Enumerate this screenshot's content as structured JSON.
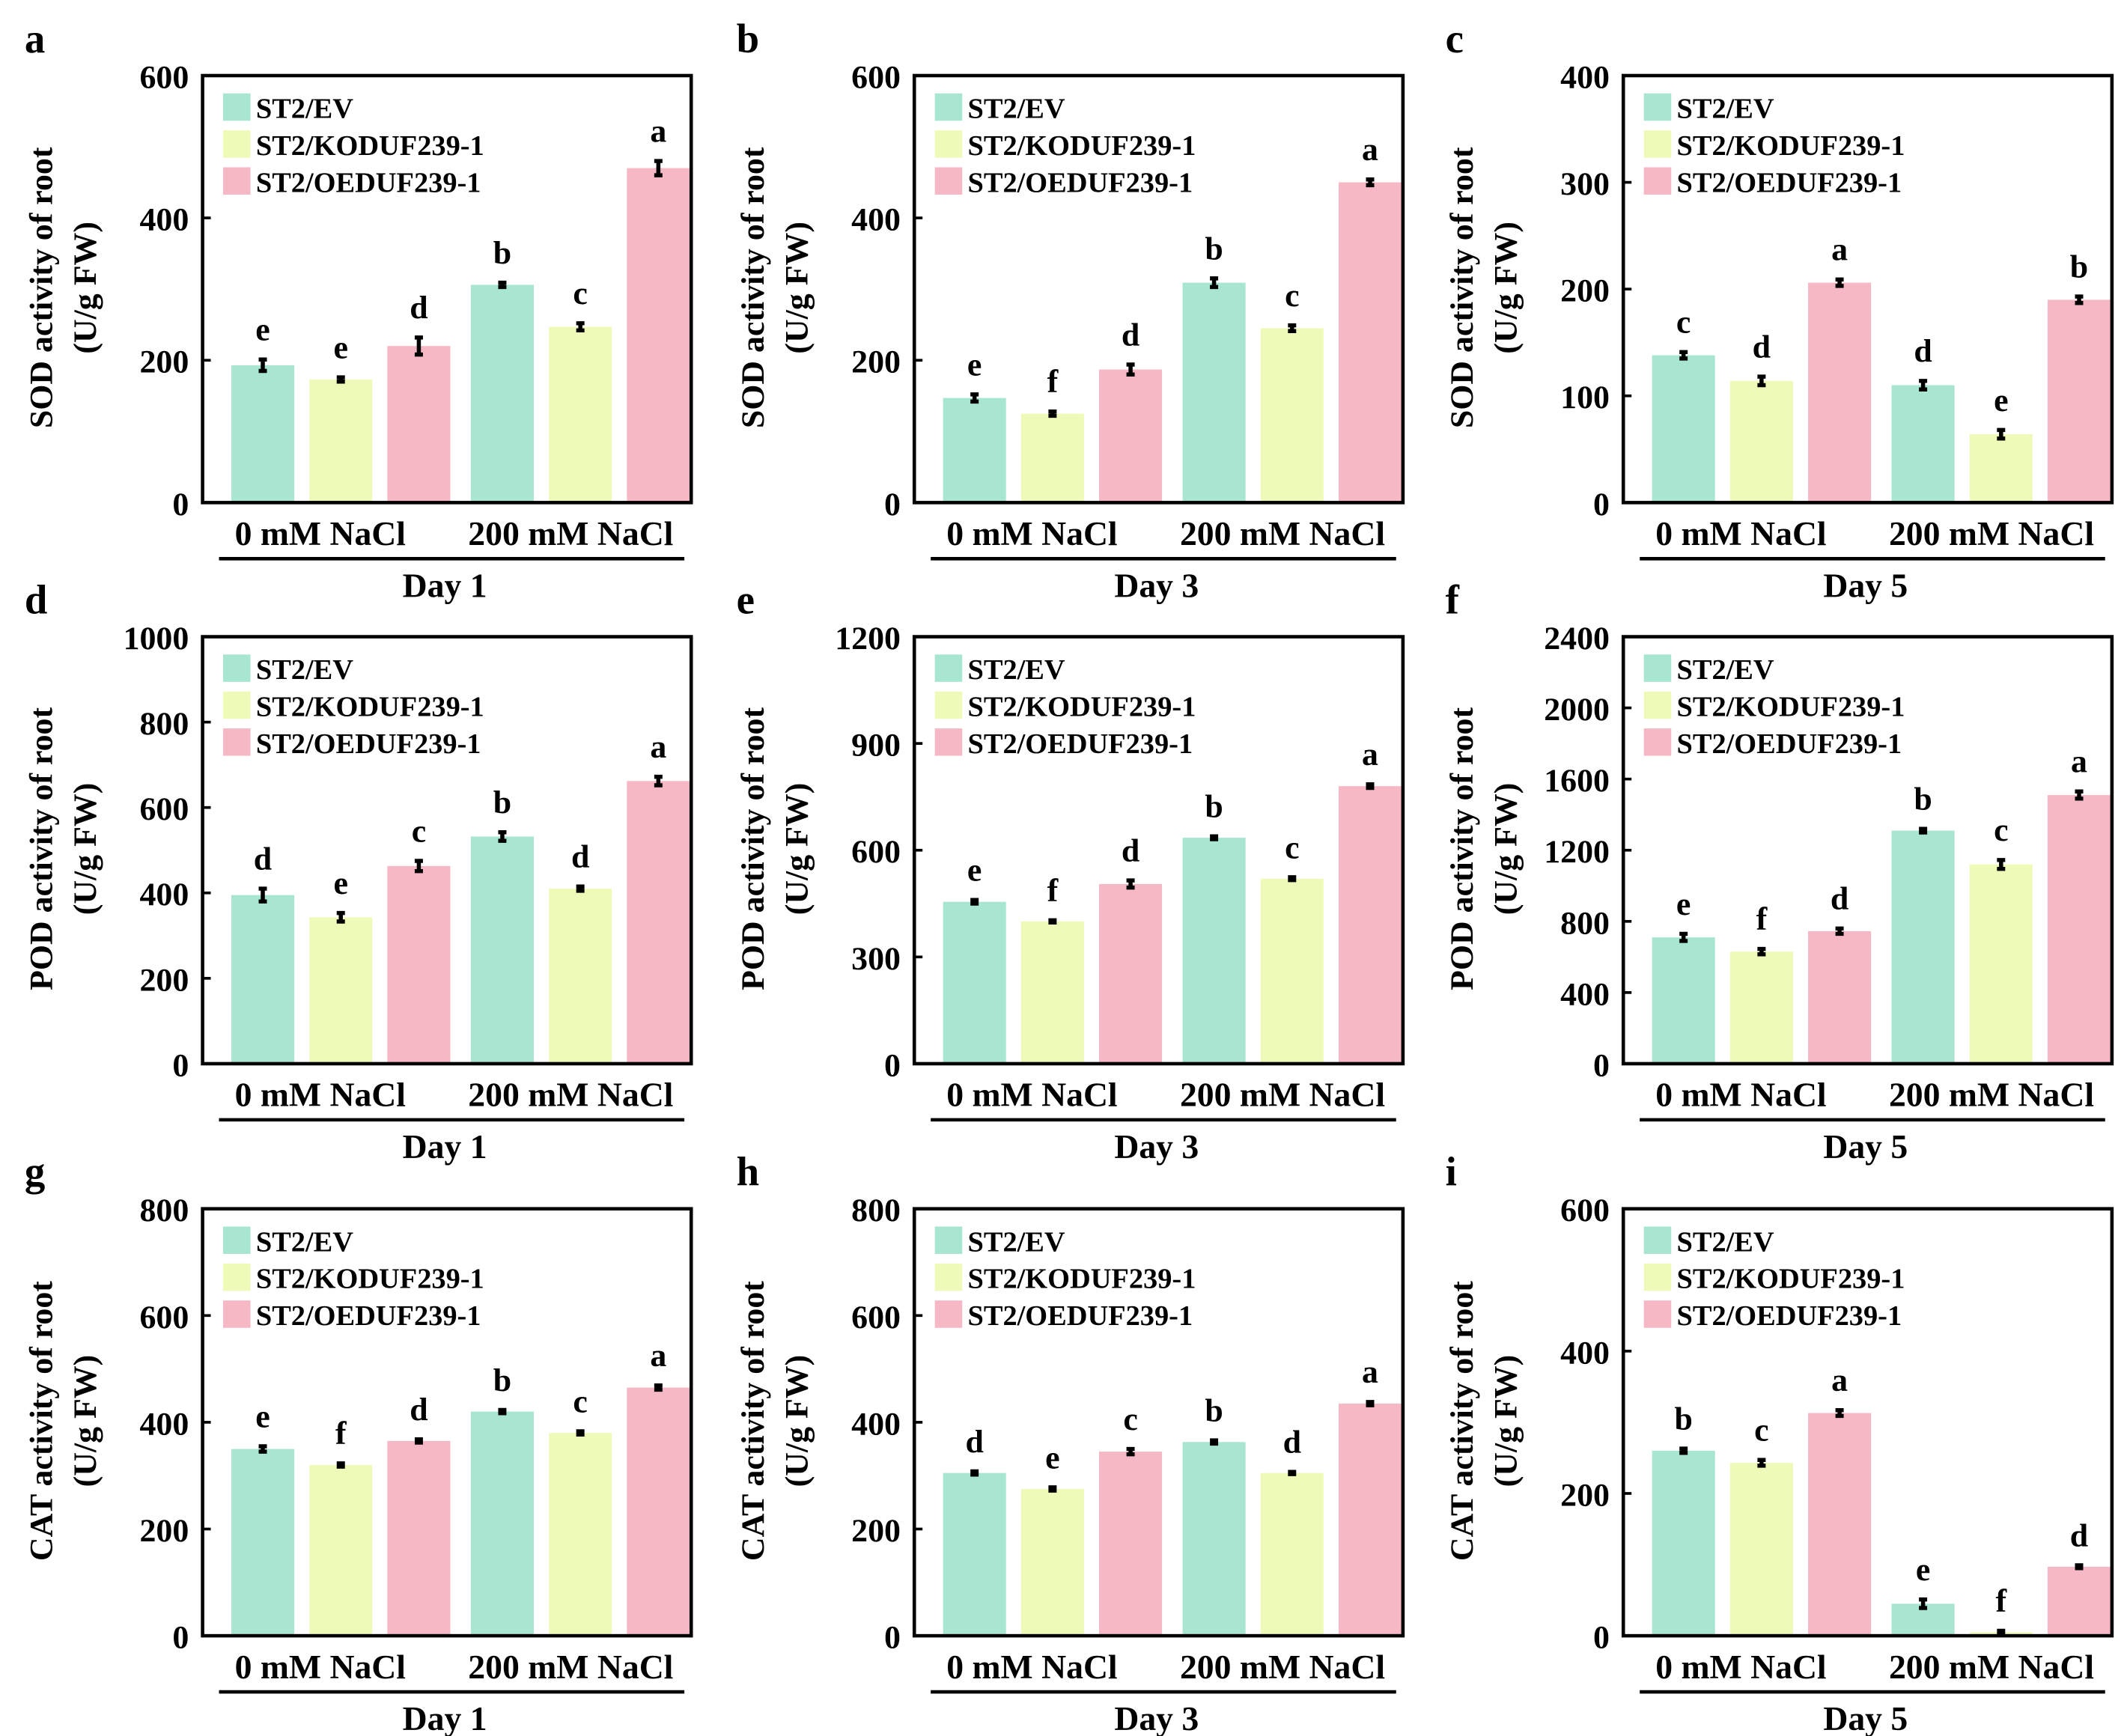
{
  "chart_data": {
    "type": "bar",
    "legend": [
      "ST2/EV",
      "ST2/KODUF239-1",
      "ST2/OEDUF239-1"
    ],
    "colors": [
      "#a8e6d2",
      "#eefbb8",
      "#f7b8c6"
    ],
    "groups": [
      "0 mM NaCl",
      "200 mM NaCl"
    ],
    "panels": [
      {
        "letter": "a",
        "ylabel": "SOD activity of root",
        "yunit": "(U/g FW)",
        "day": "Day 1",
        "ylim": [
          0,
          600
        ],
        "ticks": [
          0,
          200,
          400,
          600
        ],
        "values": [
          193,
          173,
          220,
          306,
          247,
          470
        ],
        "errors": [
          8,
          3,
          12,
          3,
          5,
          10
        ],
        "sig": [
          "e",
          "e",
          "d",
          "b",
          "c",
          "a"
        ]
      },
      {
        "letter": "b",
        "ylabel": "SOD activity of root",
        "yunit": "(U/g FW)",
        "day": "Day 3",
        "ylim": [
          0,
          600
        ],
        "ticks": [
          0,
          200,
          400,
          600
        ],
        "values": [
          147,
          125,
          187,
          309,
          245,
          450
        ],
        "errors": [
          5,
          3,
          7,
          6,
          4,
          4
        ],
        "sig": [
          "e",
          "f",
          "d",
          "b",
          "c",
          "a"
        ]
      },
      {
        "letter": "c",
        "ylabel": "SOD activity of root",
        "yunit": "(U/g FW)",
        "day": "Day 5",
        "ylim": [
          0,
          400
        ],
        "ticks": [
          0,
          100,
          200,
          300,
          400
        ],
        "values": [
          138,
          114,
          206,
          110,
          64,
          190
        ],
        "errors": [
          3,
          4,
          3,
          4,
          4,
          3
        ],
        "sig": [
          "c",
          "d",
          "a",
          "d",
          "e",
          "b"
        ]
      },
      {
        "letter": "d",
        "ylabel": "POD activity of root",
        "yunit": "(U/g FW)",
        "day": "Day 1",
        "ylim": [
          0,
          1000
        ],
        "ticks": [
          0,
          200,
          400,
          600,
          800,
          1000
        ],
        "values": [
          395,
          343,
          463,
          532,
          410,
          662
        ],
        "errors": [
          15,
          10,
          12,
          10,
          5,
          10
        ],
        "sig": [
          "d",
          "e",
          "c",
          "b",
          "d",
          "a"
        ]
      },
      {
        "letter": "e",
        "ylabel": "POD activity of root",
        "yunit": "(U/g FW)",
        "day": "Day 3",
        "ylim": [
          0,
          1200
        ],
        "ticks": [
          0,
          300,
          600,
          900,
          1200
        ],
        "values": [
          455,
          400,
          505,
          635,
          520,
          780
        ],
        "errors": [
          5,
          3,
          10,
          4,
          4,
          5
        ],
        "sig": [
          "e",
          "f",
          "d",
          "b",
          "c",
          "a"
        ]
      },
      {
        "letter": "f",
        "ylabel": "POD activity of root",
        "yunit": "(U/g FW)",
        "day": "Day 5",
        "ylim": [
          0,
          2400
        ],
        "ticks": [
          0,
          400,
          800,
          1200,
          1600,
          2000,
          2400
        ],
        "values": [
          710,
          630,
          745,
          1310,
          1120,
          1510
        ],
        "errors": [
          20,
          15,
          15,
          10,
          25,
          20
        ],
        "sig": [
          "e",
          "f",
          "d",
          "b",
          "c",
          "a"
        ]
      },
      {
        "letter": "g",
        "ylabel": "CAT activity of root",
        "yunit": "(U/g FW)",
        "day": "Day 1",
        "ylim": [
          0,
          800
        ],
        "ticks": [
          0,
          200,
          400,
          600,
          800
        ],
        "values": [
          350,
          320,
          365,
          420,
          380,
          465
        ],
        "errors": [
          5,
          3,
          3,
          3,
          3,
          4
        ],
        "sig": [
          "e",
          "f",
          "d",
          "b",
          "c",
          "a"
        ]
      },
      {
        "letter": "h",
        "ylabel": "CAT activity of root",
        "yunit": "(U/g FW)",
        "day": "Day 3",
        "ylim": [
          0,
          800
        ],
        "ticks": [
          0,
          200,
          400,
          600,
          800
        ],
        "values": [
          305,
          275,
          345,
          363,
          305,
          435
        ],
        "errors": [
          3,
          3,
          5,
          3,
          2,
          3
        ],
        "sig": [
          "d",
          "e",
          "c",
          "b",
          "d",
          "a"
        ]
      },
      {
        "letter": "i",
        "ylabel": "CAT activity of root",
        "yunit": "(U/g FW)",
        "day": "Day 5",
        "ylim": [
          0,
          600
        ],
        "ticks": [
          0,
          200,
          400,
          600
        ],
        "values": [
          260,
          243,
          313,
          45,
          5,
          97
        ],
        "errors": [
          3,
          4,
          4,
          6,
          2,
          2
        ],
        "sig": [
          "b",
          "c",
          "a",
          "e",
          "f",
          "d"
        ]
      }
    ]
  }
}
